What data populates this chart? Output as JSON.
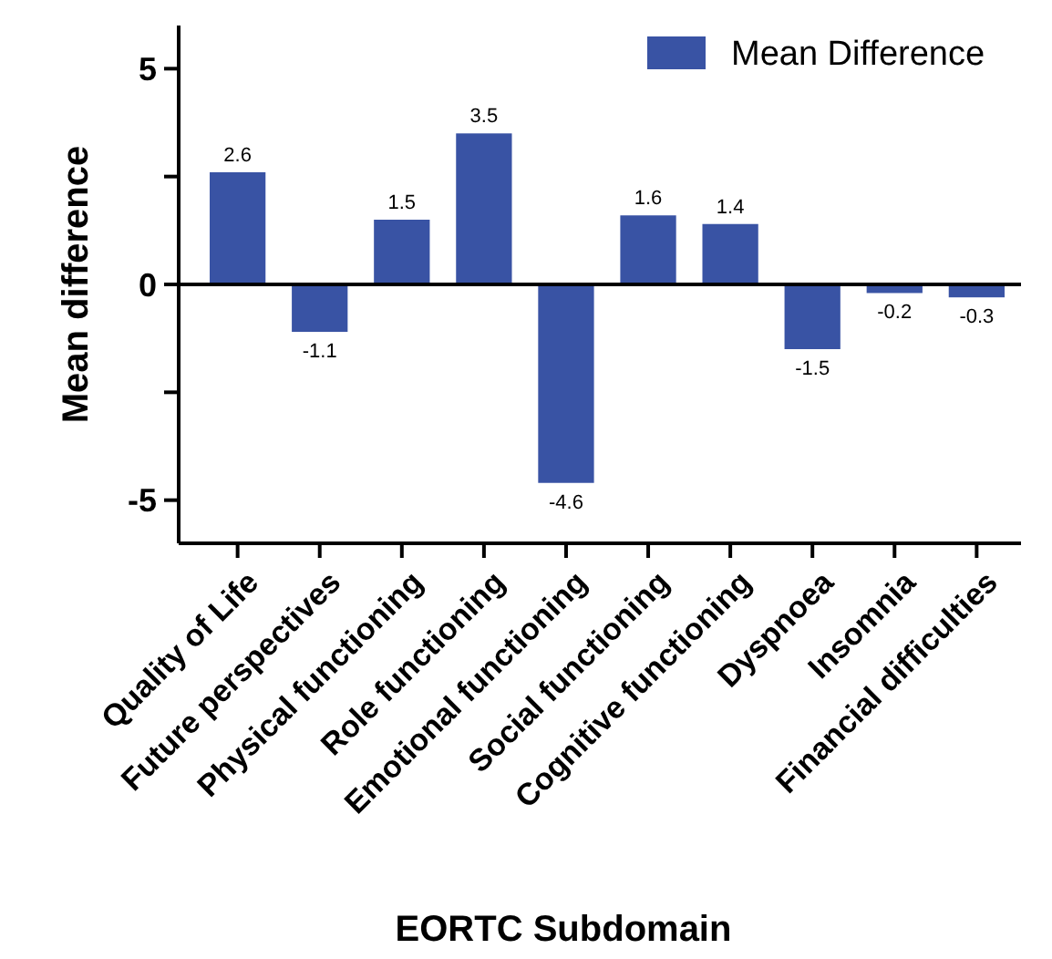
{
  "chart_data": {
    "type": "bar",
    "xlabel": "EORTC Subdomain",
    "ylabel": "Mean difference",
    "categories": [
      "Quality of Life",
      "Future perspectives",
      "Physical functioning",
      "Role functioning",
      "Emotional functioning",
      "Social functioning",
      "Cognitive functioning",
      "Dyspnoea",
      "Insomnia",
      "Financial difficulties"
    ],
    "series": [
      {
        "name": "Mean Difference",
        "color": "#3953a4",
        "values": [
          2.6,
          -1.1,
          1.5,
          3.5,
          -4.6,
          1.6,
          1.4,
          -1.5,
          -0.2,
          -0.3
        ]
      }
    ],
    "ylim": [
      -6,
      6
    ],
    "yticks": [
      -5,
      {
        "value": -2.5,
        "label": null
      },
      0,
      {
        "value": 2.5,
        "label": null
      },
      5
    ],
    "data_labels": true,
    "legend": "top right",
    "ref_lines": [
      {
        "axis": "y",
        "value": 0
      }
    ]
  }
}
